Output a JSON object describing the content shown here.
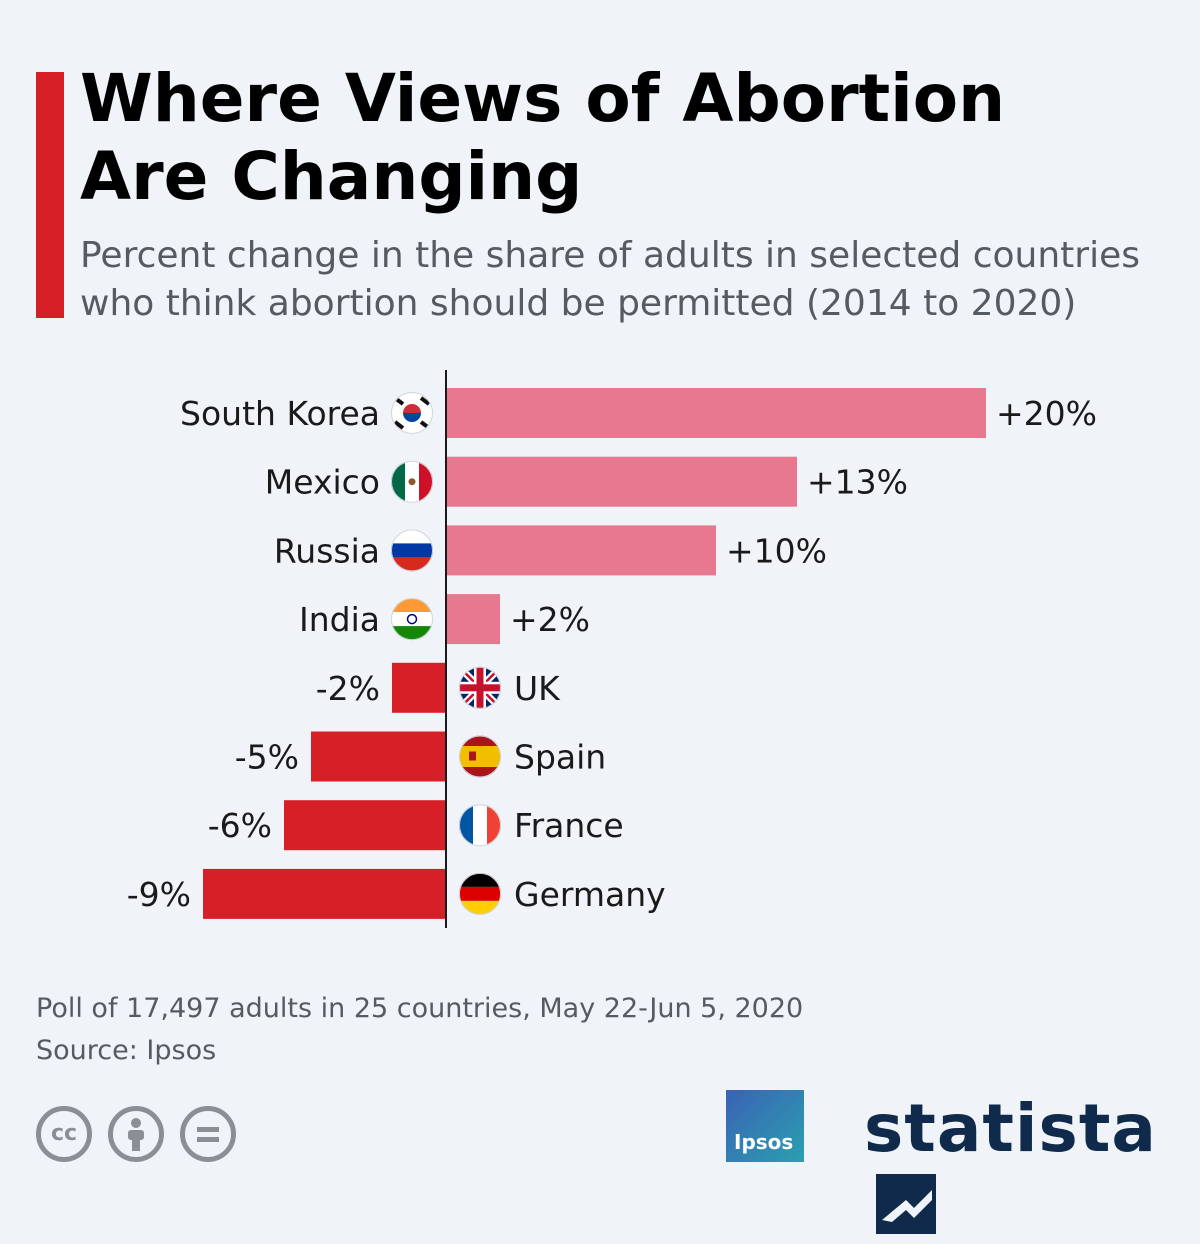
{
  "title": {
    "line1": "Where Views of Abortion",
    "line2": "Are Changing"
  },
  "subtitle": {
    "line1": "Percent change in the share of adults in selected countries",
    "line2": "who think abortion should be permitted (2014 to 2020)"
  },
  "colors": {
    "positive": "#e8788f",
    "negative": "#d71f28",
    "accent": "#d71f28",
    "background": "#f0f4f8"
  },
  "chart_data": {
    "type": "bar",
    "orientation": "horizontal",
    "categories": [
      "South Korea",
      "Mexico",
      "Russia",
      "India",
      "UK",
      "Spain",
      "France",
      "Germany"
    ],
    "values": [
      20,
      13,
      10,
      2,
      -2,
      -5,
      -6,
      -9
    ],
    "value_labels": [
      "+20%",
      "+13%",
      "+10%",
      "+2%",
      "-2%",
      "-5%",
      "-6%",
      "-9%"
    ],
    "flag_icons": [
      "flag-south-korea-icon",
      "flag-mexico-icon",
      "flag-russia-icon",
      "flag-india-icon",
      "flag-uk-icon",
      "flag-spain-icon",
      "flag-france-icon",
      "flag-germany-icon"
    ],
    "xlim": [
      -9,
      20
    ],
    "grid": false
  },
  "footnote": {
    "line1": "Poll of 17,497 adults in 25 countries, May 22-Jun 5, 2020",
    "line2": "Source: Ipsos"
  },
  "logos": {
    "ipsos": "Ipsos",
    "statista": "statista"
  },
  "license_icons": [
    "cc-icon",
    "attribution-icon",
    "no-derivatives-icon"
  ]
}
